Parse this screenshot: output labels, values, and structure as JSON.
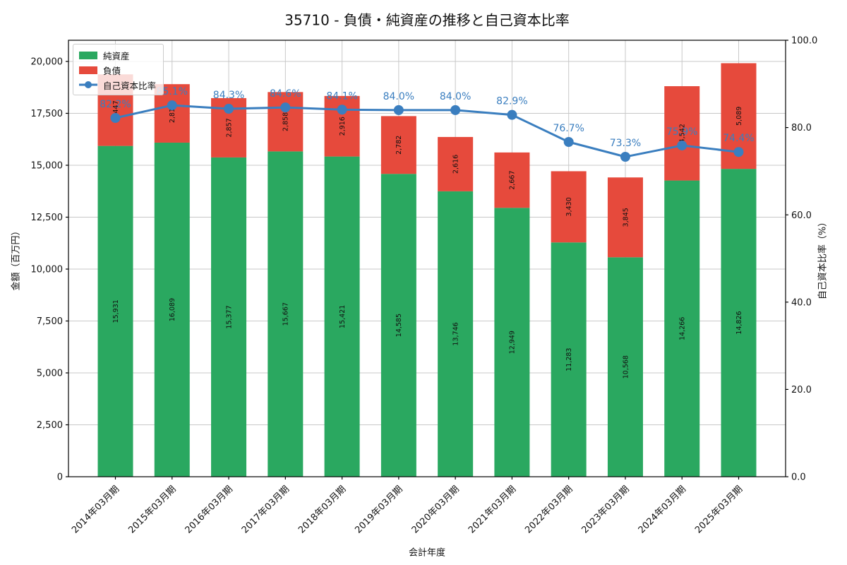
{
  "title": "35710 - 負債・純資産の推移と自己資本比率",
  "legend": {
    "net_assets_label": "純資産",
    "liabilities_label": "負債",
    "equity_ratio_label": "自己資本比率"
  },
  "axes": {
    "x_label": "会計年度",
    "y_left_label": "金額（百万円）",
    "y_right_label": "自己資本比率（%）"
  },
  "colors": {
    "net_assets": "#2aa860",
    "liabilities": "#e64a3c",
    "ratio_line": "#3a7ebf",
    "grid": "#c8c8c8",
    "background": "#ffffff"
  },
  "chart_data": {
    "type": "bar",
    "subtype": "stacked-bar-with-line",
    "title": "35710 - 負債・純資産の推移と自己資本比率",
    "xlabel": "会計年度",
    "ylabel_left": "金額（百万円）",
    "ylabel_right": "自己資本比率（%）",
    "categories": [
      "2014年03月期",
      "2015年03月期",
      "2016年03月期",
      "2017年03月期",
      "2018年03月期",
      "2019年03月期",
      "2020年03月期",
      "2021年03月期",
      "2022年03月期",
      "2023年03月期",
      "2024年03月期",
      "2025年03月期"
    ],
    "stacked": true,
    "series": [
      {
        "name": "純資産",
        "type": "bar",
        "axis": "left",
        "color": "#2aa860",
        "values": [
          15931,
          16089,
          15377,
          15667,
          15421,
          14585,
          13746,
          12949,
          11283,
          10568,
          14266,
          14826
        ]
      },
      {
        "name": "負債",
        "type": "bar",
        "axis": "left",
        "color": "#e64a3c",
        "values": [
          3447,
          2817,
          2857,
          2858,
          2916,
          2782,
          2616,
          2667,
          3430,
          3845,
          4542,
          5089
        ]
      },
      {
        "name": "自己資本比率",
        "type": "line",
        "axis": "right",
        "unit": "%",
        "color": "#3a7ebf",
        "values": [
          82.2,
          85.1,
          84.3,
          84.6,
          84.1,
          84.0,
          84.0,
          82.9,
          76.7,
          73.3,
          75.9,
          74.4
        ]
      }
    ],
    "yticks_left": [
      0,
      2500,
      5000,
      7500,
      10000,
      12500,
      15000,
      17500,
      20000
    ],
    "yticks_right": [
      0,
      20,
      40,
      60,
      80,
      100
    ],
    "ylim_left": [
      0,
      21020
    ],
    "ylim_right": [
      0,
      100
    ],
    "grid": true,
    "legend_position": "upper left"
  }
}
